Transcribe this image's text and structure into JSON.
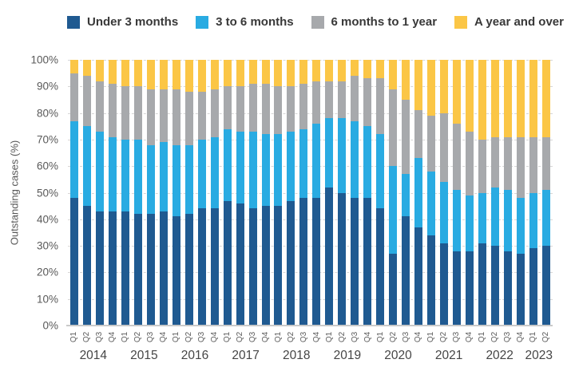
{
  "chart_data": {
    "type": "bar",
    "stacked": true,
    "percent": true,
    "ylabel": "Outstanding cases (%)",
    "ylim": [
      0,
      100
    ],
    "ytick_step": 10,
    "yticks": [
      "0%",
      "10%",
      "20%",
      "30%",
      "40%",
      "50%",
      "60%",
      "70%",
      "80%",
      "90%",
      "100%"
    ],
    "grid": "horizontal-dashed",
    "legend_position": "top",
    "categories": [
      "2014 Q1",
      "2014 Q2",
      "2014 Q3",
      "2014 Q4",
      "2015 Q1",
      "2015 Q2",
      "2015 Q3",
      "2015 Q4",
      "2016 Q1",
      "2016 Q2",
      "2016 Q3",
      "2016 Q4",
      "2017 Q1",
      "2017 Q2",
      "2017 Q3",
      "2017 Q4",
      "2018 Q1",
      "2018 Q2",
      "2018 Q3",
      "2018 Q4",
      "2019 Q1",
      "2019 Q2",
      "2019 Q3",
      "2019 Q4",
      "2020 Q1",
      "2020 Q2",
      "2020 Q3",
      "2020 Q4",
      "2021 Q1",
      "2021 Q2",
      "2021 Q3",
      "2021 Q4",
      "2022 Q1",
      "2022 Q2",
      "2022 Q3",
      "2022 Q4",
      "2023 Q1",
      "2023 Q2"
    ],
    "years": [
      {
        "label": "2014",
        "quarters": [
          "Q1",
          "Q2",
          "Q3",
          "Q4"
        ]
      },
      {
        "label": "2015",
        "quarters": [
          "Q1",
          "Q2",
          "Q3",
          "Q4"
        ]
      },
      {
        "label": "2016",
        "quarters": [
          "Q1",
          "Q2",
          "Q3",
          "Q4"
        ]
      },
      {
        "label": "2017",
        "quarters": [
          "Q1",
          "Q2",
          "Q3",
          "Q4"
        ]
      },
      {
        "label": "2018",
        "quarters": [
          "Q1",
          "Q2",
          "Q3",
          "Q4"
        ]
      },
      {
        "label": "2019",
        "quarters": [
          "Q1",
          "Q2",
          "Q3",
          "Q4"
        ]
      },
      {
        "label": "2020",
        "quarters": [
          "Q1",
          "Q2",
          "Q3",
          "Q4"
        ]
      },
      {
        "label": "2021",
        "quarters": [
          "Q1",
          "Q2",
          "Q3",
          "Q4"
        ]
      },
      {
        "label": "2022",
        "quarters": [
          "Q1",
          "Q2",
          "Q3",
          "Q4"
        ]
      },
      {
        "label": "2023",
        "quarters": [
          "Q1",
          "Q2"
        ]
      }
    ],
    "series": [
      {
        "name": "Under 3 months",
        "color": "#1F5A91",
        "values": [
          48,
          45,
          43,
          43,
          43,
          42,
          42,
          43,
          41,
          42,
          44,
          44,
          47,
          46,
          44,
          45,
          45,
          47,
          48,
          48,
          52,
          50,
          48,
          48,
          44,
          27,
          41,
          37,
          34,
          31,
          28,
          28,
          31,
          30,
          28,
          27,
          29,
          30
        ]
      },
      {
        "name": "3 to 6 months",
        "color": "#29ABE2",
        "values": [
          29,
          30,
          30,
          28,
          27,
          28,
          26,
          26,
          27,
          26,
          26,
          27,
          27,
          27,
          29,
          27,
          27,
          26,
          26,
          28,
          26,
          28,
          29,
          27,
          28,
          33,
          16,
          26,
          24,
          23,
          23,
          21,
          19,
          22,
          23,
          21,
          21,
          21
        ]
      },
      {
        "name": "6 months to 1 year",
        "color": "#A7A9AC",
        "values": [
          18,
          19,
          19,
          20,
          20,
          20,
          21,
          20,
          21,
          20,
          18,
          18,
          16,
          17,
          18,
          19,
          18,
          17,
          17,
          16,
          14,
          14,
          17,
          18,
          21,
          29,
          28,
          18,
          21,
          26,
          25,
          24,
          20,
          19,
          20,
          23,
          21,
          20
        ]
      },
      {
        "name": "A year and over",
        "color": "#FBC646",
        "values": [
          5,
          6,
          8,
          9,
          10,
          10,
          11,
          11,
          11,
          12,
          12,
          11,
          10,
          10,
          9,
          9,
          10,
          10,
          9,
          8,
          8,
          8,
          6,
          7,
          7,
          11,
          15,
          19,
          21,
          20,
          24,
          27,
          30,
          29,
          29,
          29,
          29,
          29
        ]
      }
    ]
  }
}
